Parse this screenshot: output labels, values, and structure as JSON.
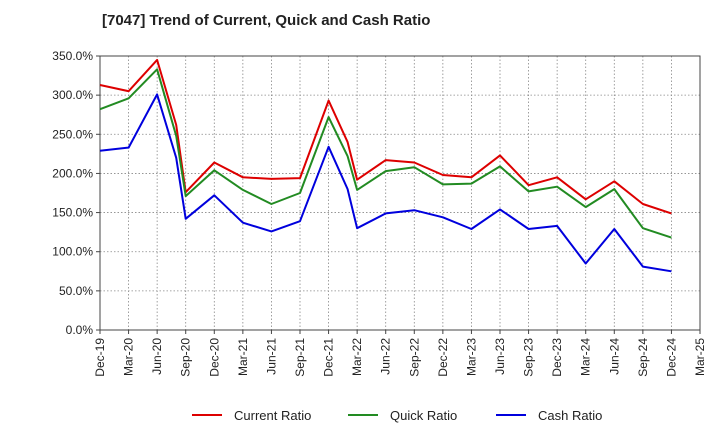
{
  "chart_data": {
    "type": "line",
    "title": "[7047]  Trend of Current, Quick and Cash Ratio",
    "xlabel": "",
    "ylabel": "",
    "ylim": [
      0,
      350
    ],
    "grid": true,
    "legend_position": "bottom",
    "y_ticks": [
      "0.0%",
      "50.0%",
      "100.0%",
      "150.0%",
      "200.0%",
      "250.0%",
      "300.0%",
      "350.0%"
    ],
    "x_ticks": [
      "Dec-19",
      "Mar-20",
      "Jun-20",
      "Sep-20",
      "Dec-20",
      "Mar-21",
      "Jun-21",
      "Sep-21",
      "Dec-21",
      "Mar-22",
      "Jun-22",
      "Sep-22",
      "Dec-22",
      "Mar-23",
      "Jun-23",
      "Sep-23",
      "Dec-23",
      "Mar-24",
      "Jun-24",
      "Sep-24",
      "Dec-24",
      "Mar-25"
    ],
    "x": [
      0,
      3,
      6,
      8,
      9,
      12,
      15,
      18,
      21,
      24,
      26,
      27,
      30,
      33,
      36,
      39,
      42,
      45,
      48,
      51,
      54,
      57,
      60
    ],
    "series": [
      {
        "name": "Current Ratio",
        "color": "#dd0000",
        "values": [
          313,
          305,
          345,
          262,
          176,
          214,
          195,
          193,
          194,
          293,
          240,
          192,
          217,
          214,
          198,
          195,
          223,
          185,
          195,
          167,
          190,
          161,
          149
        ]
      },
      {
        "name": "Quick Ratio",
        "color": "#228b22",
        "values": [
          282,
          296,
          333,
          248,
          171,
          204,
          179,
          161,
          175,
          272,
          222,
          179,
          203,
          208,
          186,
          187,
          209,
          177,
          183,
          157,
          180,
          130,
          118
        ]
      },
      {
        "name": "Cash Ratio",
        "color": "#0000dd",
        "values": [
          229,
          233,
          301,
          220,
          142,
          172,
          137,
          126,
          139,
          234,
          180,
          130,
          149,
          153,
          144,
          129,
          154,
          129,
          133,
          85,
          129,
          81,
          75
        ]
      }
    ]
  }
}
